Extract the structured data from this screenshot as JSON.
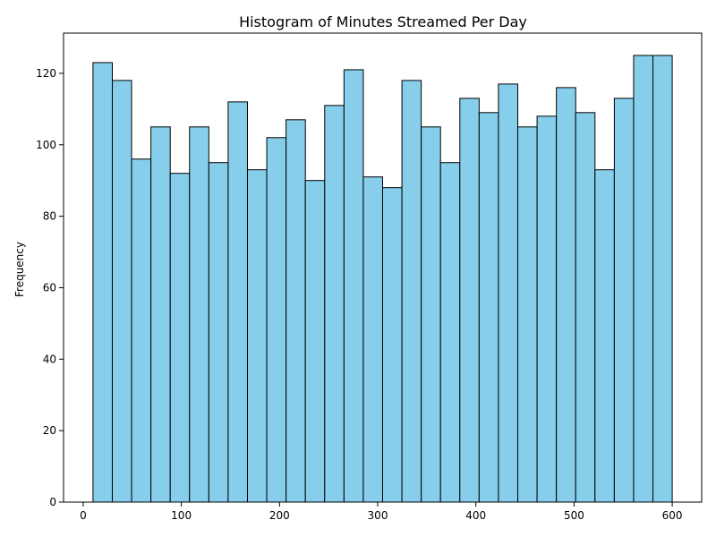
{
  "chart_data": {
    "type": "bar",
    "title": "Histogram of Minutes Streamed Per Day",
    "xlabel": "",
    "ylabel": "Frequency",
    "bin_start": 10,
    "bin_width": 19.67,
    "bins": [
      {
        "x0": 10.0,
        "x1": 29.67,
        "count": 123
      },
      {
        "x0": 29.67,
        "x1": 49.33,
        "count": 118
      },
      {
        "x0": 49.33,
        "x1": 69.0,
        "count": 96
      },
      {
        "x0": 69.0,
        "x1": 88.67,
        "count": 105
      },
      {
        "x0": 88.67,
        "x1": 108.33,
        "count": 92
      },
      {
        "x0": 108.33,
        "x1": 128.0,
        "count": 105
      },
      {
        "x0": 128.0,
        "x1": 147.67,
        "count": 95
      },
      {
        "x0": 147.67,
        "x1": 167.33,
        "count": 112
      },
      {
        "x0": 167.33,
        "x1": 187.0,
        "count": 93
      },
      {
        "x0": 187.0,
        "x1": 206.67,
        "count": 102
      },
      {
        "x0": 206.67,
        "x1": 226.33,
        "count": 107
      },
      {
        "x0": 226.33,
        "x1": 246.0,
        "count": 90
      },
      {
        "x0": 246.0,
        "x1": 265.67,
        "count": 111
      },
      {
        "x0": 265.67,
        "x1": 285.33,
        "count": 121
      },
      {
        "x0": 285.33,
        "x1": 305.0,
        "count": 91
      },
      {
        "x0": 305.0,
        "x1": 324.67,
        "count": 88
      },
      {
        "x0": 324.67,
        "x1": 344.33,
        "count": 118
      },
      {
        "x0": 344.33,
        "x1": 364.0,
        "count": 105
      },
      {
        "x0": 364.0,
        "x1": 383.67,
        "count": 95
      },
      {
        "x0": 383.67,
        "x1": 403.33,
        "count": 113
      },
      {
        "x0": 403.33,
        "x1": 423.0,
        "count": 109
      },
      {
        "x0": 423.0,
        "x1": 442.67,
        "count": 117
      },
      {
        "x0": 442.67,
        "x1": 462.33,
        "count": 105
      },
      {
        "x0": 462.33,
        "x1": 482.0,
        "count": 108
      },
      {
        "x0": 482.0,
        "x1": 501.67,
        "count": 116
      },
      {
        "x0": 501.67,
        "x1": 521.33,
        "count": 109
      },
      {
        "x0": 521.33,
        "x1": 541.0,
        "count": 93
      },
      {
        "x0": 541.0,
        "x1": 560.67,
        "count": 113
      },
      {
        "x0": 560.67,
        "x1": 580.33,
        "count": 125
      },
      {
        "x0": 580.33,
        "x1": 600.0,
        "count": 125
      }
    ],
    "xlim": [
      -20.0,
      630.0
    ],
    "ylim": [
      0,
      131.25
    ],
    "x_ticks": [
      0,
      100,
      200,
      300,
      400,
      500,
      600
    ],
    "y_ticks": [
      0,
      20,
      40,
      60,
      80,
      100,
      120
    ],
    "grid": false,
    "colors": {
      "bar_fill": "#87ceeb",
      "bar_edge": "#000000",
      "axis": "#000000",
      "background": "#ffffff"
    }
  }
}
